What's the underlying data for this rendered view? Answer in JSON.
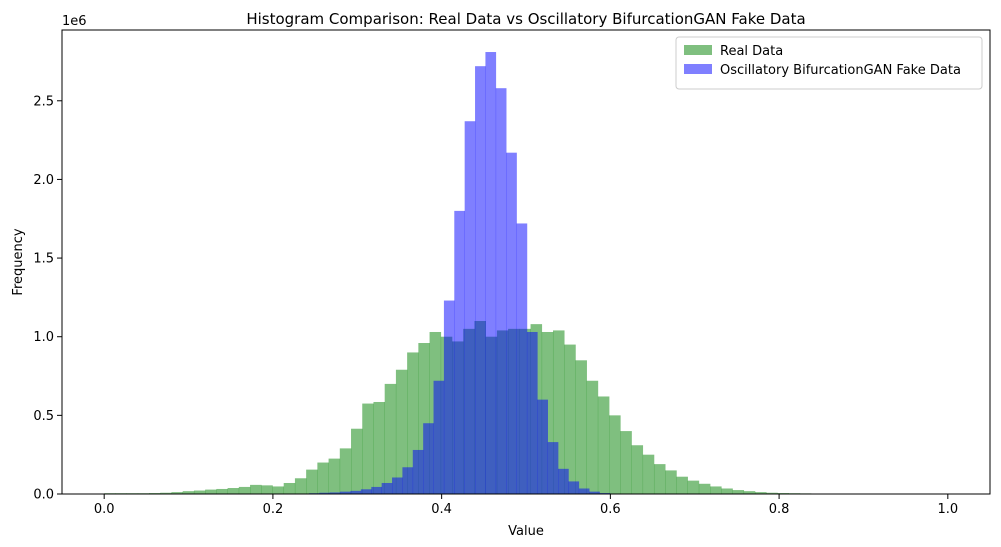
{
  "chart_data": {
    "type": "histogram",
    "title": "Histogram Comparison: Real Data vs Oscillatory BifurcationGAN Fake Data",
    "xlabel": "Value",
    "ylabel": "Frequency",
    "y_offset_label": "1e6",
    "xlim": [
      -0.05,
      1.05
    ],
    "ylim": [
      0,
      2.95
    ],
    "x_ticks": [
      0.0,
      0.2,
      0.4,
      0.6,
      0.8,
      1.0
    ],
    "x_tick_labels": [
      "0.0",
      "0.2",
      "0.4",
      "0.6",
      "0.8",
      "1.0"
    ],
    "y_ticks": [
      0.0,
      0.5,
      1.0,
      1.5,
      2.0,
      2.5
    ],
    "y_tick_labels": [
      "0.0",
      "0.5",
      "1.0",
      "1.5",
      "2.0",
      "2.5"
    ],
    "legend_position": "top-right",
    "series": [
      {
        "name": "Real Data",
        "color": "#008000",
        "alpha": 0.5,
        "bin_start": 0.0,
        "bin_width": 0.0133,
        "values": [
          0.005,
          0.005,
          0.005,
          0.005,
          0.006,
          0.008,
          0.012,
          0.018,
          0.022,
          0.028,
          0.032,
          0.038,
          0.045,
          0.058,
          0.055,
          0.048,
          0.07,
          0.1,
          0.155,
          0.2,
          0.225,
          0.29,
          0.415,
          0.575,
          0.585,
          0.7,
          0.79,
          0.9,
          0.96,
          1.03,
          1.0,
          0.97,
          1.05,
          1.1,
          1.0,
          1.04,
          1.05,
          1.05,
          1.08,
          1.03,
          1.04,
          0.95,
          0.85,
          0.72,
          0.62,
          0.5,
          0.4,
          0.31,
          0.25,
          0.19,
          0.15,
          0.11,
          0.085,
          0.065,
          0.048,
          0.035,
          0.025,
          0.018,
          0.012,
          0.008,
          0.006,
          0.005,
          0.004,
          0.003
        ]
      },
      {
        "name": "Oscillatory BifurcationGAN Fake Data",
        "color": "#0000ff",
        "alpha": 0.5,
        "bin_start": 0.2305,
        "bin_width": 0.0123,
        "values": [
          0.003,
          0.005,
          0.008,
          0.01,
          0.015,
          0.02,
          0.03,
          0.045,
          0.07,
          0.105,
          0.17,
          0.28,
          0.45,
          0.72,
          1.23,
          1.8,
          2.37,
          2.72,
          2.81,
          2.58,
          2.17,
          1.72,
          1.03,
          0.6,
          0.33,
          0.16,
          0.08,
          0.035,
          0.015,
          0.006
        ]
      }
    ]
  }
}
